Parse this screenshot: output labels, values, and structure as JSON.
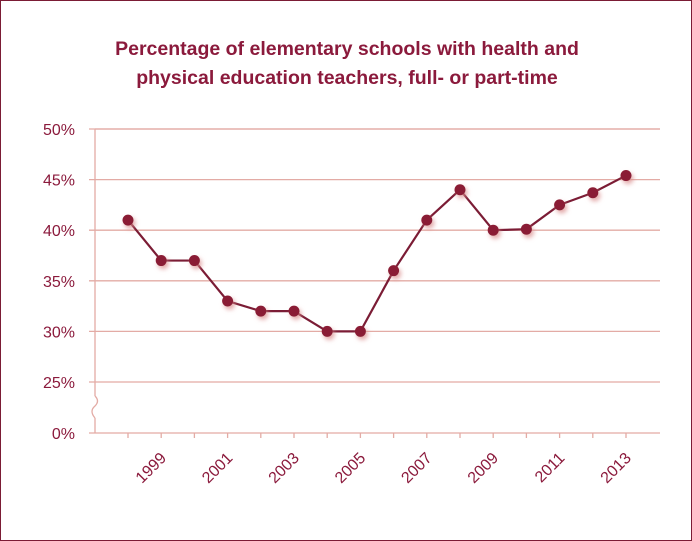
{
  "colors": {
    "line": "#7b1c35",
    "marker": "#8a1b35",
    "grid": "#e3aba5",
    "text": "#8b1a3c",
    "frame": "#7b1c35"
  },
  "chart_data": {
    "type": "line",
    "title_lines": [
      "Percentage of elementary schools with health and",
      "physical education teachers, full- or part-time"
    ],
    "xlabel": "",
    "ylabel": "",
    "y_axis_break": true,
    "y_ticks": [
      "0%",
      "25%",
      "30%",
      "35%",
      "40%",
      "45%",
      "50%"
    ],
    "x_tick_labels": [
      "1999",
      "2001",
      "2003",
      "2005",
      "2007",
      "2009",
      "2011",
      "2013"
    ],
    "grid": true,
    "series": [
      {
        "x": [
          1998,
          1999,
          2000,
          2001,
          2002,
          2003,
          2004,
          2005,
          2006,
          2007,
          2008,
          2009,
          2010,
          2011,
          2012,
          2013
        ],
        "values": [
          41,
          37,
          37,
          33,
          32,
          32,
          30,
          30,
          36,
          41,
          44,
          40,
          40.1,
          42.5,
          43.7,
          45.4
        ]
      }
    ]
  }
}
